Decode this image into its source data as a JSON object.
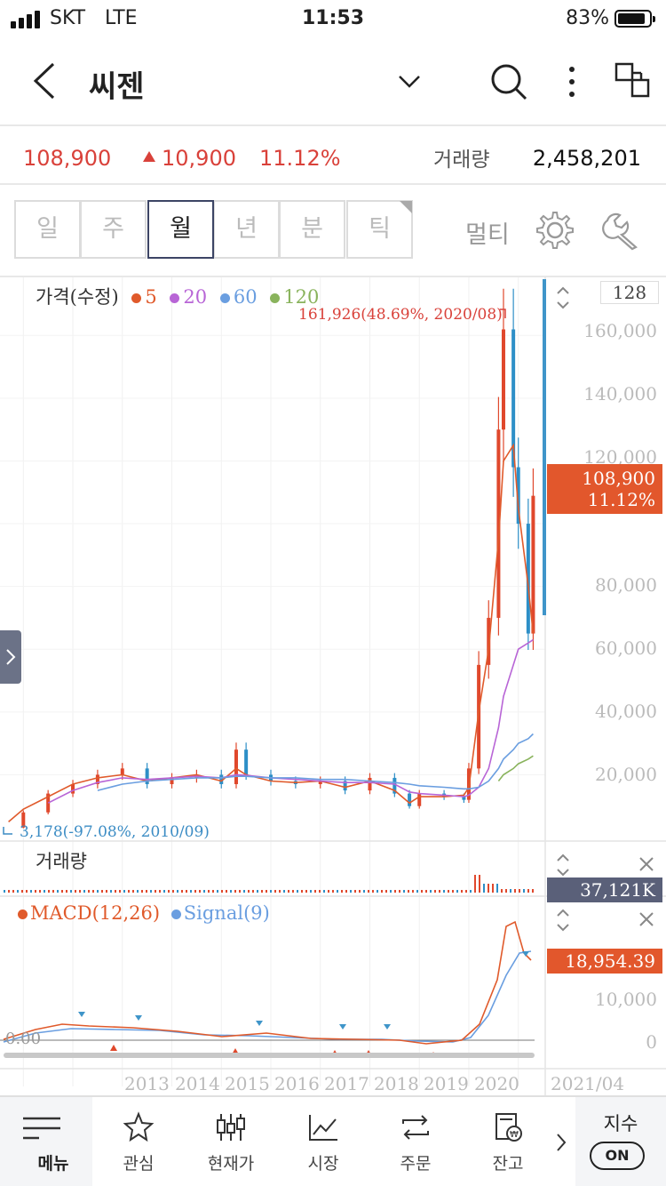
{
  "status_bar": {
    "carrier": "SKT",
    "network": "LTE",
    "time": "11:53",
    "battery": "83%",
    "battery_level": 0.83
  },
  "header": {
    "title": "씨젠",
    "icons": [
      "back-arrow-icon",
      "chevron-down-icon",
      "search-icon",
      "more-vertical-icon",
      "multi-window-icon"
    ]
  },
  "quote": {
    "price": "108,900",
    "change": "10,900",
    "change_rate": "11.12%",
    "volume_label": "거래량",
    "volume": "2,458,201",
    "up_color": "#d9413a"
  },
  "period_tabs": [
    "일",
    "주",
    "월",
    "년",
    "분",
    "틱"
  ],
  "active_tab": "월",
  "tools": {
    "multi_label": "멀티",
    "icons": [
      "gear-icon",
      "wrench-icon"
    ]
  },
  "chart": {
    "legend": {
      "price_label": "가격(수정)",
      "ma": [
        {
          "label": "5",
          "color": "#e05a2b"
        },
        {
          "label": "20",
          "color": "#b865d6"
        },
        {
          "label": "60",
          "color": "#6a9ee0"
        },
        {
          "label": "120",
          "color": "#89b35c"
        }
      ]
    },
    "count": "128",
    "peak_label": "161,926(48.69%, 2020/08)",
    "low_label": "3,178(-97.08%, 2010/09)",
    "current_price": "108,900",
    "current_rate": "11.12%",
    "y_axis": [
      "160,000",
      "140,000",
      "120,000",
      "80,000",
      "60,000",
      "40,000",
      "20,000"
    ],
    "volume_label": "거래량",
    "volume_value": "37,121K",
    "macd_label": "MACD(12,26)",
    "signal_label": "Signal(9)",
    "macd_value": "18,954.39",
    "macd_axis": [
      "10,000",
      "0"
    ],
    "macd_zero_left": "0.00",
    "x_axis": [
      "2013",
      "2014",
      "2015",
      "2016",
      "2017",
      "2018",
      "2019",
      "2020"
    ],
    "last_date": "2021/04"
  },
  "chart_data": {
    "type": "line",
    "title": "",
    "xlabel": "",
    "ylabel": "",
    "ylim": [
      0,
      170000
    ],
    "x": [
      2010.7,
      2011.0,
      2011.5,
      2012.0,
      2012.5,
      2013.0,
      2013.5,
      2014.0,
      2014.5,
      2015.0,
      2015.3,
      2015.5,
      2016.0,
      2016.5,
      2017.0,
      2017.5,
      2018.0,
      2018.5,
      2018.8,
      2019.0,
      2019.5,
      2019.9,
      2020.0,
      2020.2,
      2020.4,
      2020.6,
      2020.7,
      2020.9,
      2021.0,
      2021.2,
      2021.3
    ],
    "series": [
      {
        "name": "가격(수정)",
        "values": [
          3178,
          8000,
          14000,
          17000,
          20000,
          22000,
          17000,
          19000,
          20000,
          17000,
          28000,
          20000,
          18000,
          17000,
          18000,
          15000,
          19000,
          14000,
          10000,
          14000,
          13000,
          12000,
          22000,
          55000,
          70000,
          130000,
          161926,
          118000,
          100000,
          65000,
          108900
        ]
      },
      {
        "name": "5",
        "values": [
          5000,
          9000,
          13000,
          17000,
          19000,
          20000,
          18000,
          19000,
          20000,
          18000,
          22000,
          20000,
          18000,
          17500,
          18000,
          16000,
          18000,
          15000,
          11000,
          13000,
          13000,
          13500,
          16000,
          40000,
          60000,
          95000,
          120000,
          125000,
          105000,
          80000,
          65000
        ]
      },
      {
        "name": "20",
        "values": [
          null,
          null,
          11000,
          15000,
          17500,
          19000,
          18500,
          19000,
          19500,
          19000,
          20000,
          19800,
          19000,
          18500,
          18000,
          17500,
          17500,
          17000,
          14500,
          14000,
          13500,
          13000,
          13500,
          16000,
          22000,
          35000,
          45000,
          55000,
          60000,
          62000,
          63000
        ]
      },
      {
        "name": "60",
        "values": [
          null,
          null,
          null,
          null,
          15000,
          17000,
          18000,
          18500,
          19000,
          19000,
          19500,
          19500,
          19000,
          19000,
          18500,
          18500,
          18000,
          17500,
          17000,
          16500,
          16000,
          15500,
          15500,
          16000,
          18000,
          22000,
          25000,
          28000,
          30000,
          31500,
          33000
        ]
      },
      {
        "name": "120",
        "values": [
          null,
          null,
          null,
          null,
          null,
          null,
          null,
          null,
          null,
          null,
          null,
          null,
          null,
          null,
          null,
          null,
          null,
          null,
          null,
          null,
          null,
          null,
          null,
          null,
          null,
          18000,
          20000,
          22000,
          23500,
          25000,
          26000
        ]
      }
    ],
    "markers": {
      "high": {
        "value": 161926,
        "date": "2020/08"
      },
      "low": {
        "value": 3178,
        "date": "2010/09"
      }
    }
  },
  "bottom_nav": {
    "items": [
      {
        "label": "메뉴",
        "icon": "hamburger-menu-icon"
      },
      {
        "label": "관심",
        "icon": "star-icon"
      },
      {
        "label": "현재가",
        "icon": "candlestick-icon"
      },
      {
        "label": "시장",
        "icon": "trend-chart-icon"
      },
      {
        "label": "주문",
        "icon": "exchange-arrows-icon"
      },
      {
        "label": "잔고",
        "icon": "balance-receipt-icon"
      }
    ],
    "index_label": "지수",
    "index_toggle": "ON"
  }
}
